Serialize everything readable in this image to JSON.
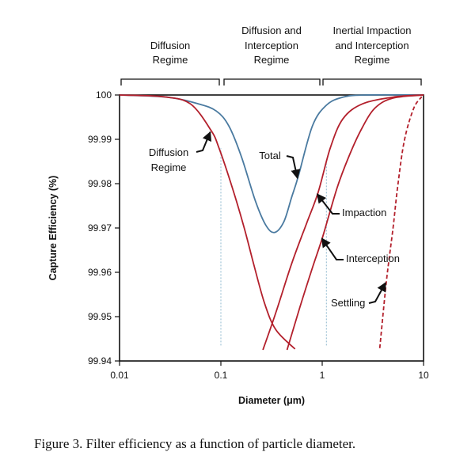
{
  "chart_data": {
    "type": "line",
    "xlabel": "Diameter (μm)",
    "ylabel": "Capture Efficiency (%)",
    "xscale": "log",
    "xlim": [
      0.01,
      10
    ],
    "ylim": [
      99.94,
      100
    ],
    "xticks": [
      "0.01",
      "0.1",
      "1",
      "10"
    ],
    "xtick_values": [
      0.01,
      0.1,
      1,
      10
    ],
    "yticks": [
      "100",
      "99.99",
      "99.98",
      "99.97",
      "99.96",
      "99.95",
      "99.94"
    ],
    "ytick_values": [
      100,
      99.99,
      99.98,
      99.97,
      99.96,
      99.95,
      99.94
    ],
    "colors": {
      "total": "#4a7aa0",
      "mechanism": "#b3202c",
      "guide": "#8fb8cf"
    },
    "series": [
      {
        "name": "Total",
        "color": "#4a7aa0",
        "dashed": false,
        "points": [
          [
            0.01,
            100
          ],
          [
            0.03,
            99.9995
          ],
          [
            0.06,
            99.998
          ],
          [
            0.09,
            99.9964
          ],
          [
            0.12,
            99.993
          ],
          [
            0.16,
            99.986
          ],
          [
            0.22,
            99.976
          ],
          [
            0.28,
            99.9705
          ],
          [
            0.34,
            99.969
          ],
          [
            0.42,
            99.9715
          ],
          [
            0.5,
            99.977
          ],
          [
            0.58,
            99.9816
          ],
          [
            0.8,
            99.993
          ],
          [
            1.1,
            99.9977
          ],
          [
            1.6,
            99.9995
          ],
          [
            2.6,
            100
          ],
          [
            10,
            100
          ]
        ]
      },
      {
        "name": "Diffusion Regime",
        "color": "#b3202c",
        "dashed": false,
        "points": [
          [
            0.01,
            100
          ],
          [
            0.027,
            99.9996
          ],
          [
            0.05,
            99.998
          ],
          [
            0.08,
            99.992
          ],
          [
            0.096,
            99.988
          ],
          [
            0.13,
            99.979
          ],
          [
            0.17,
            99.97
          ],
          [
            0.21,
            99.962
          ],
          [
            0.27,
            99.953
          ],
          [
            0.35,
            99.947
          ],
          [
            0.54,
            99.9427
          ]
        ]
      },
      {
        "name": "Impaction",
        "color": "#b3202c",
        "dashed": false,
        "points": [
          [
            0.26,
            99.9425
          ],
          [
            0.35,
            99.951
          ],
          [
            0.5,
            99.962
          ],
          [
            0.7,
            99.971
          ],
          [
            0.91,
            99.978
          ],
          [
            1.2,
            99.988
          ],
          [
            1.6,
            99.9946
          ],
          [
            2.5,
            99.998
          ],
          [
            5.3,
            99.9996
          ],
          [
            10,
            100
          ]
        ]
      },
      {
        "name": "Interception",
        "color": "#b3202c",
        "dashed": false,
        "points": [
          [
            0.45,
            99.9425
          ],
          [
            0.6,
            99.952
          ],
          [
            0.8,
            99.961
          ],
          [
            1.01,
            99.968
          ],
          [
            1.4,
            99.979
          ],
          [
            1.8,
            99.9857
          ],
          [
            2.4,
            99.992
          ],
          [
            3.3,
            99.997
          ],
          [
            5,
            99.9993
          ],
          [
            10,
            100
          ]
        ]
      },
      {
        "name": "Settling",
        "color": "#b3202c",
        "dashed": true,
        "points": [
          [
            3.7,
            99.9429
          ],
          [
            4.3,
            99.958
          ],
          [
            5.0,
            99.97
          ],
          [
            5.6,
            99.98
          ],
          [
            6.5,
            99.99
          ],
          [
            8,
            99.997
          ],
          [
            9.6,
            99.9996
          ]
        ]
      }
    ],
    "guides": [
      {
        "x": 0.1,
        "y": [
          99.9435,
          99.988
        ]
      },
      {
        "x": 1.1,
        "y": [
          99.9435,
          99.985
        ]
      }
    ],
    "regimes": [
      {
        "lines": [
          "Diffusion",
          "Regime"
        ],
        "x_range": [
          0.01,
          0.1
        ]
      },
      {
        "lines": [
          "Diffusion and",
          "Interception",
          "Regime"
        ],
        "x_range": [
          0.1,
          1
        ]
      },
      {
        "lines": [
          "Inertial Impaction",
          "and Interception",
          "Regime"
        ],
        "x_range": [
          1,
          10
        ]
      }
    ],
    "annotations": [
      {
        "lines": [
          "Diffusion",
          "Regime"
        ],
        "target": [
          0.08,
          99.992
        ]
      },
      {
        "lines": [
          "Total"
        ],
        "target": [
          0.58,
          99.9816
        ]
      },
      {
        "lines": [
          "Impaction"
        ],
        "target": [
          0.91,
          99.978
        ]
      },
      {
        "lines": [
          "Interception"
        ],
        "target": [
          1.01,
          99.968
        ]
      },
      {
        "lines": [
          "Settling"
        ],
        "target": [
          4.3,
          99.958
        ]
      }
    ]
  },
  "caption": "Figure 3.  Filter efficiency as a function of particle diameter."
}
